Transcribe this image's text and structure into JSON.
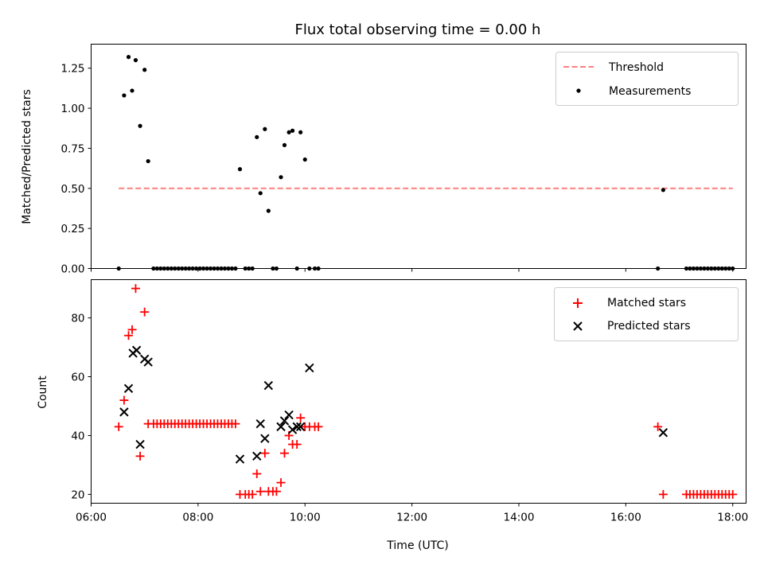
{
  "chart_data": [
    {
      "type": "scatter",
      "title": "Flux total observing time = 0.00 h",
      "xlabel": "",
      "ylabel": "Matched/Predicted stars",
      "xlim": [
        "06:00",
        "18:15"
      ],
      "ylim": [
        0,
        1.4
      ],
      "yticks": [
        0.0,
        0.25,
        0.5,
        0.75,
        1.0,
        1.25
      ],
      "ytick_labels": [
        "0.00",
        "0.25",
        "0.50",
        "0.75",
        "1.00",
        "1.25"
      ],
      "xticks": [
        "06:00",
        "08:00",
        "10:00",
        "12:00",
        "14:00",
        "16:00",
        "18:00"
      ],
      "legend_position": "top-right",
      "series": [
        {
          "name": "Threshold",
          "kind": "dashed-line",
          "color": "#ff7f7f",
          "x": [
            "06:31",
            "18:00"
          ],
          "y": [
            0.5,
            0.5
          ]
        },
        {
          "name": "Measurements",
          "kind": "dot",
          "color": "#000000",
          "x": [
            "06:31",
            "06:37",
            "06:42",
            "06:46",
            "06:50",
            "06:55",
            "07:00",
            "07:04",
            "07:10",
            "07:14",
            "07:18",
            "07:22",
            "07:26",
            "07:30",
            "07:34",
            "07:38",
            "07:42",
            "07:46",
            "07:50",
            "07:54",
            "07:58",
            "08:02",
            "08:06",
            "08:10",
            "08:14",
            "08:18",
            "08:22",
            "08:26",
            "08:30",
            "08:34",
            "08:38",
            "08:42",
            "08:47",
            "08:53",
            "08:57",
            "09:01",
            "09:06",
            "09:10",
            "09:15",
            "09:19",
            "09:24",
            "09:28",
            "09:33",
            "09:37",
            "09:42",
            "09:46",
            "09:51",
            "09:55",
            "10:00",
            "10:05",
            "10:11",
            "10:15",
            "16:36",
            "16:42",
            "17:08",
            "17:12",
            "17:16",
            "17:20",
            "17:24",
            "17:28",
            "17:32",
            "17:36",
            "17:40",
            "17:44",
            "17:48",
            "17:52",
            "17:56",
            "18:00"
          ],
          "y": [
            0,
            1.08,
            1.32,
            1.11,
            1.3,
            0.89,
            1.24,
            0.67,
            0,
            0,
            0,
            0,
            0,
            0,
            0,
            0,
            0,
            0,
            0,
            0,
            0,
            0,
            0,
            0,
            0,
            0,
            0,
            0,
            0,
            0,
            0,
            0,
            0.62,
            0,
            0,
            0,
            0.82,
            0.47,
            0.87,
            0.36,
            0,
            0,
            0.57,
            0.77,
            0.85,
            0.86,
            0,
            0.85,
            0.68,
            0,
            0,
            0,
            0,
            0.49,
            0,
            0,
            0,
            0,
            0,
            0,
            0,
            0,
            0,
            0,
            0,
            0,
            0,
            0
          ]
        }
      ]
    },
    {
      "type": "scatter",
      "title": "",
      "xlabel": "Time (UTC)",
      "ylabel": "Count",
      "xlim": [
        "06:00",
        "18:15"
      ],
      "ylim": [
        17,
        93
      ],
      "yticks": [
        20,
        40,
        60,
        80
      ],
      "xticks": [
        "06:00",
        "08:00",
        "10:00",
        "12:00",
        "14:00",
        "16:00",
        "18:00"
      ],
      "legend_position": "top-right",
      "series": [
        {
          "name": "Matched stars",
          "kind": "plus",
          "color": "#ff0000",
          "x": [
            "06:31",
            "06:37",
            "06:42",
            "06:46",
            "06:50",
            "06:55",
            "07:00",
            "07:04",
            "07:10",
            "07:14",
            "07:18",
            "07:22",
            "07:26",
            "07:30",
            "07:34",
            "07:38",
            "07:42",
            "07:46",
            "07:50",
            "07:54",
            "07:58",
            "08:02",
            "08:06",
            "08:10",
            "08:14",
            "08:18",
            "08:22",
            "08:26",
            "08:30",
            "08:34",
            "08:38",
            "08:42",
            "08:47",
            "08:53",
            "08:57",
            "09:01",
            "09:06",
            "09:10",
            "09:15",
            "09:19",
            "09:24",
            "09:28",
            "09:33",
            "09:37",
            "09:42",
            "09:46",
            "09:51",
            "09:55",
            "10:00",
            "10:05",
            "10:11",
            "10:15",
            "16:36",
            "16:42",
            "17:08",
            "17:12",
            "17:16",
            "17:20",
            "17:24",
            "17:28",
            "17:32",
            "17:36",
            "17:40",
            "17:44",
            "17:48",
            "17:52",
            "17:56",
            "18:00"
          ],
          "y": [
            43,
            52,
            74,
            76,
            90,
            33,
            82,
            44,
            44,
            44,
            44,
            44,
            44,
            44,
            44,
            44,
            44,
            44,
            44,
            44,
            44,
            44,
            44,
            44,
            44,
            44,
            44,
            44,
            44,
            44,
            44,
            44,
            20,
            20,
            20,
            20,
            27,
            21,
            34,
            21,
            21,
            21,
            24,
            34,
            40,
            37,
            37,
            46,
            43,
            43,
            43,
            43,
            43,
            20,
            20,
            20,
            20,
            20,
            20,
            20,
            20,
            20,
            20,
            20,
            20,
            20,
            20,
            20
          ]
        },
        {
          "name": "Predicted stars",
          "kind": "x",
          "color": "#000000",
          "x": [
            "06:37",
            "06:42",
            "06:47",
            "06:51",
            "06:55",
            "07:00",
            "07:04",
            "08:47",
            "09:06",
            "09:10",
            "09:15",
            "09:19",
            "09:33",
            "09:37",
            "09:42",
            "09:46",
            "09:51",
            "09:55",
            "10:05",
            "16:42"
          ],
          "y": [
            48,
            56,
            68,
            69,
            37,
            66,
            65,
            32,
            33,
            44,
            39,
            57,
            43,
            45,
            47,
            42,
            43,
            43,
            63,
            41
          ]
        }
      ]
    }
  ]
}
